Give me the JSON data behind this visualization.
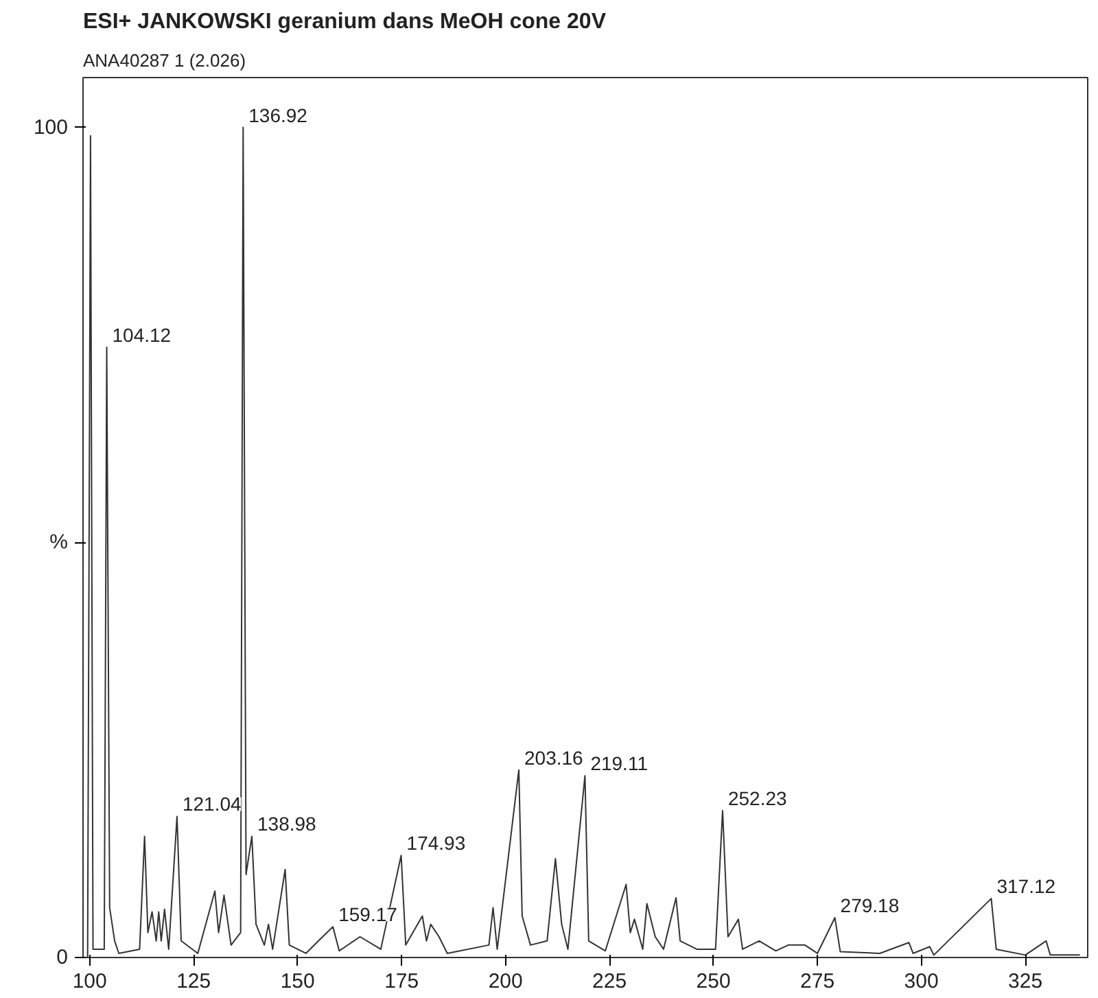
{
  "chart_data": {
    "type": "line",
    "title": "ESI+   JANKOWSKI geranium dans MeOH cone 20V",
    "subtitle": "ANA40287 1 (2.026)",
    "x": [
      99.5,
      100.2,
      100.8,
      103.5,
      104.1,
      104.8,
      106,
      107,
      112,
      113.2,
      114,
      115,
      116,
      116.6,
      117.2,
      118,
      119,
      121,
      122,
      126,
      130.1,
      131,
      132.3,
      134,
      136.3,
      136.9,
      137.6,
      139,
      140,
      142,
      143,
      144,
      147,
      148,
      152,
      155,
      158.5,
      160,
      165,
      170,
      174.9,
      176,
      180,
      181,
      182,
      184,
      186,
      196,
      197,
      198,
      203.2,
      204,
      206,
      210,
      212,
      213.5,
      215,
      219.1,
      220,
      224,
      229,
      230,
      231,
      233,
      234,
      236,
      238,
      241,
      242,
      246,
      250.5,
      252.2,
      253.5,
      256,
      257,
      261,
      265,
      268,
      272,
      275,
      279.2,
      280.5,
      290,
      297,
      298,
      302,
      303,
      316.8,
      318,
      325,
      330,
      331,
      338
    ],
    "series": [
      {
        "color": "#333333",
        "values": [
          0,
          99,
          1,
          1,
          73.5,
          6,
          2,
          0.5,
          1,
          14.6,
          3,
          5.5,
          2,
          5.5,
          2,
          5.8,
          1,
          17,
          2,
          0.5,
          8,
          3,
          7.5,
          1.5,
          3,
          100,
          10,
          14.6,
          4,
          1.5,
          4,
          1,
          10.6,
          1.5,
          0.5,
          2,
          3.7,
          0.8,
          2.5,
          1,
          12.3,
          1.5,
          5,
          2,
          4,
          2.5,
          0.5,
          1.5,
          6,
          1,
          22.6,
          5,
          1.5,
          2,
          11.9,
          4,
          1,
          21.9,
          2,
          0.8,
          8.8,
          3,
          4.6,
          1,
          6.5,
          2.5,
          1,
          7.2,
          2,
          1,
          1,
          17.7,
          2.5,
          4.6,
          1,
          2,
          0.8,
          1.5,
          1.5,
          0.5,
          4.8,
          0.7,
          0.5,
          1.8,
          0.5,
          1.3,
          0.3,
          7.1,
          1,
          0.3,
          2,
          0.3,
          0.3
        ]
      }
    ],
    "xlim": [
      98.4,
      340
    ],
    "ylim": [
      0,
      106
    ],
    "xticks": [
      100,
      125,
      150,
      175,
      200,
      225,
      250,
      275,
      300,
      325
    ],
    "yticks": [
      0,
      {
        "value": 50,
        "label": "%"
      },
      100
    ],
    "grid": false,
    "marker": "none",
    "line_style": "solid",
    "annotations": [
      {
        "text": "136.92",
        "x": 136.9,
        "y": 100
      },
      {
        "text": "104.12",
        "x": 104.1,
        "y": 73.5
      },
      {
        "text": "121.04",
        "x": 121,
        "y": 17
      },
      {
        "text": "138.98",
        "x": 139,
        "y": 14.6
      },
      {
        "text": "159.17",
        "x": 158.5,
        "y": 3.7
      },
      {
        "text": "174.93",
        "x": 174.9,
        "y": 12.3
      },
      {
        "text": "203.16",
        "x": 203.2,
        "y": 22.6
      },
      {
        "text": "219.11",
        "x": 219.1,
        "y": 21.9
      },
      {
        "text": "252.23",
        "x": 252.2,
        "y": 17.7
      },
      {
        "text": "279.18",
        "x": 279.2,
        "y": 4.8
      },
      {
        "text": "317.12",
        "x": 316.8,
        "y": 7.1
      }
    ]
  }
}
